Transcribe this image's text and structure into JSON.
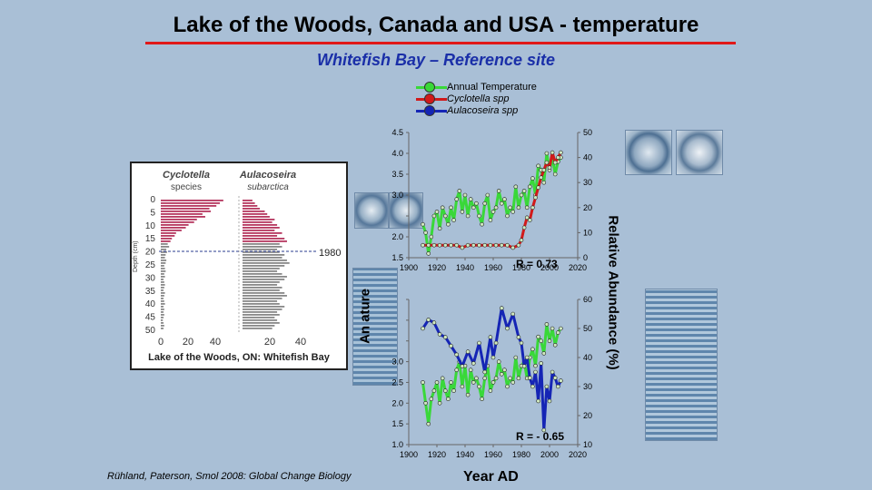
{
  "title": "Lake of the Woods, Canada and USA - temperature",
  "subtitle": "Whitefish Bay – Reference site",
  "legend": [
    {
      "label": "Annual Temperature",
      "color": "#39d839"
    },
    {
      "label": "Cyclotella spp",
      "color": "#d11a1a"
    },
    {
      "label": "Aulacoseira spp",
      "color": "#1525b5"
    }
  ],
  "profile": {
    "col1_title": "Cyclotella",
    "col1_subtitle": "species",
    "col2_title": "Aulacoseira",
    "col2_subtitle": "subarctica",
    "ylabel": "Depth (cm)",
    "year_marker": "1980",
    "caption": "Lake of the Woods, ON: Whitefish Bay",
    "depth_ticks": [
      "0",
      "5",
      "10",
      "15",
      "20",
      "25",
      "30",
      "35",
      "40",
      "45",
      "50"
    ],
    "x_ticks_left": [
      "0",
      "20",
      "40"
    ],
    "x_ticks_right": [
      "20",
      "40"
    ]
  },
  "credit": "Rühland, Paterson, Smol 2008: Global Change Biology",
  "x_axis_label": "Year AD",
  "right_axis_label": "Relative Abundance (%)",
  "left_axis_label_visible": "An     ature",
  "chart_data": [
    {
      "type": "line",
      "title": "",
      "r_label": "R = 0.73",
      "xlabel": "",
      "xlim": [
        1900,
        2020
      ],
      "x_ticks": [
        1900,
        1920,
        1940,
        1960,
        1980,
        2000,
        2020
      ],
      "ylim_left": [
        1.5,
        4.5
      ],
      "y_ticks_left": [
        "1.5",
        "2.0",
        "",
        "3.0",
        "3.5",
        "4.0",
        "4.5"
      ],
      "ylim_right": [
        0,
        50
      ],
      "y_ticks_right": [
        "0",
        "10",
        "20",
        "30",
        "40",
        "50"
      ],
      "series": [
        {
          "name": "Annual Temperature",
          "axis": "left",
          "color": "#39d839",
          "x": [
            1910,
            1912,
            1914,
            1916,
            1918,
            1920,
            1922,
            1924,
            1926,
            1928,
            1930,
            1932,
            1934,
            1936,
            1938,
            1940,
            1942,
            1944,
            1946,
            1948,
            1950,
            1952,
            1954,
            1956,
            1958,
            1960,
            1962,
            1964,
            1966,
            1968,
            1970,
            1972,
            1974,
            1976,
            1978,
            1980,
            1982,
            1984,
            1986,
            1988,
            1990,
            1992,
            1994,
            1996,
            1998,
            2000,
            2002,
            2004,
            2006,
            2008
          ],
          "y": [
            2.3,
            2.1,
            1.6,
            2.0,
            2.5,
            2.6,
            2.2,
            2.7,
            2.5,
            2.3,
            2.7,
            2.4,
            2.9,
            3.1,
            2.6,
            3.0,
            2.5,
            2.9,
            2.7,
            2.8,
            2.5,
            2.3,
            2.8,
            3.0,
            2.4,
            2.6,
            2.7,
            3.1,
            2.8,
            2.9,
            2.5,
            2.7,
            2.6,
            3.2,
            2.7,
            3.0,
            3.1,
            2.7,
            3.2,
            3.4,
            3.0,
            3.7,
            3.6,
            3.3,
            4.0,
            3.6,
            3.9,
            3.5,
            3.8,
            3.9
          ]
        },
        {
          "name": "Cyclotella spp",
          "axis": "right",
          "color": "#d11a1a",
          "x": [
            1910,
            1914,
            1918,
            1922,
            1926,
            1930,
            1934,
            1938,
            1942,
            1946,
            1950,
            1954,
            1958,
            1962,
            1966,
            1970,
            1974,
            1978,
            1980,
            1982,
            1984,
            1986,
            1988,
            1990,
            1992,
            1994,
            1996,
            1998,
            2000,
            2002,
            2004,
            2006,
            2008
          ],
          "y": [
            5,
            5,
            5,
            5,
            5,
            5,
            5,
            4,
            5,
            5,
            5,
            5,
            5,
            5,
            5,
            5,
            4,
            5,
            7,
            12,
            16,
            15,
            20,
            24,
            28,
            32,
            35,
            38,
            36,
            42,
            38,
            40,
            42
          ]
        }
      ]
    },
    {
      "type": "line",
      "title": "",
      "r_label": "R = - 0.65",
      "xlabel": "Year AD",
      "xlim": [
        1900,
        2020
      ],
      "x_ticks": [
        1900,
        1920,
        1940,
        1960,
        1980,
        2000,
        2020
      ],
      "ylim_left": [
        1.0,
        4.5
      ],
      "y_ticks_left": [
        "1.0",
        "1.5",
        "2.0",
        "2.5",
        "3.0",
        "",
        "",
        ""
      ],
      "ylim_right": [
        10,
        60
      ],
      "y_ticks_right": [
        "10",
        "20",
        "30",
        "40",
        "50",
        "60"
      ],
      "series": [
        {
          "name": "Annual Temperature",
          "axis": "left",
          "color": "#39d839",
          "x": [
            1910,
            1912,
            1914,
            1916,
            1918,
            1920,
            1922,
            1924,
            1926,
            1928,
            1930,
            1932,
            1934,
            1936,
            1938,
            1940,
            1942,
            1944,
            1946,
            1948,
            1950,
            1952,
            1954,
            1956,
            1958,
            1960,
            1962,
            1964,
            1966,
            1968,
            1970,
            1972,
            1974,
            1976,
            1978,
            1980,
            1982,
            1984,
            1986,
            1988,
            1990,
            1992,
            1994,
            1996,
            1998,
            2000,
            2002,
            2004,
            2006,
            2008
          ],
          "y": [
            2.5,
            2.0,
            1.5,
            2.1,
            2.3,
            2.5,
            2.0,
            2.6,
            2.3,
            2.1,
            2.5,
            2.3,
            2.8,
            3.0,
            2.4,
            2.9,
            2.2,
            2.8,
            2.5,
            2.6,
            2.4,
            2.1,
            2.6,
            2.9,
            2.3,
            2.5,
            2.6,
            3.0,
            2.7,
            2.8,
            2.4,
            2.6,
            2.5,
            3.1,
            2.6,
            2.9,
            3.0,
            2.6,
            3.1,
            3.3,
            2.9,
            3.6,
            3.5,
            3.2,
            3.9,
            3.5,
            3.8,
            3.4,
            3.7,
            3.8
          ]
        },
        {
          "name": "Aulacoseira spp",
          "axis": "right",
          "color": "#1525b5",
          "x": [
            1910,
            1914,
            1918,
            1922,
            1926,
            1930,
            1934,
            1938,
            1942,
            1946,
            1950,
            1954,
            1958,
            1960,
            1962,
            1966,
            1970,
            1974,
            1978,
            1980,
            1982,
            1984,
            1986,
            1988,
            1990,
            1992,
            1994,
            1996,
            1998,
            2000,
            2002,
            2004,
            2006,
            2008
          ],
          "y": [
            50,
            53,
            52,
            48,
            47,
            44,
            41,
            37,
            42,
            38,
            45,
            35,
            47,
            40,
            45,
            57,
            50,
            55,
            47,
            45,
            37,
            40,
            33,
            30,
            35,
            25,
            38,
            15,
            30,
            25,
            35,
            33,
            30,
            32
          ]
        }
      ]
    }
  ]
}
